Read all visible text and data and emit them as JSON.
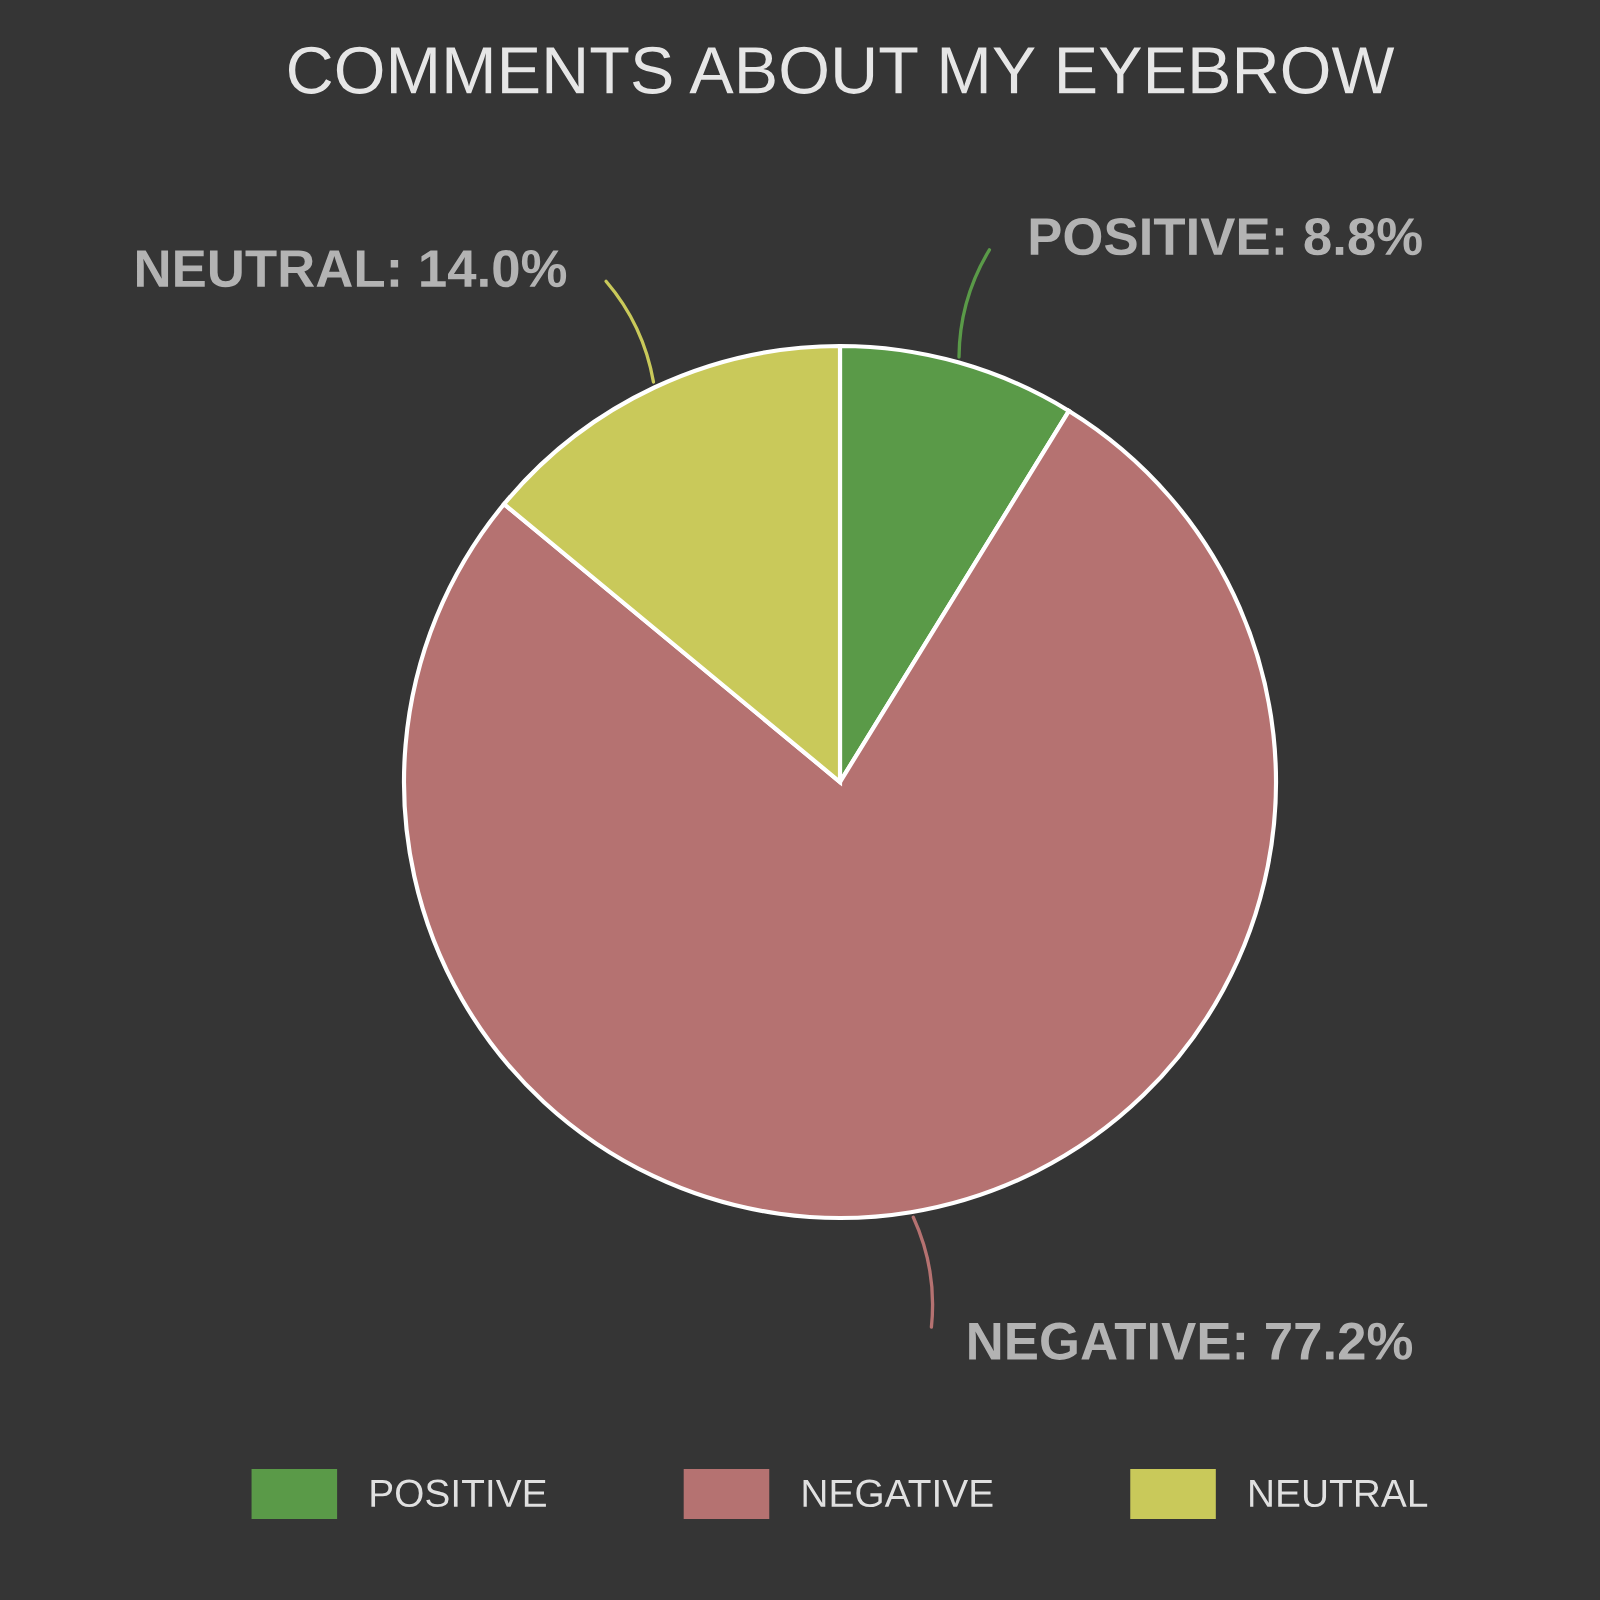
{
  "chart_data": {
    "type": "pie",
    "title": "COMMENTS ABOUT MY EYEBROW",
    "categories": [
      "POSITIVE",
      "NEGATIVE",
      "NEUTRAL"
    ],
    "values": [
      8.8,
      77.2,
      14.0
    ],
    "colors": [
      "#5a9a48",
      "#b57271",
      "#c9c95a"
    ],
    "value_labels": [
      "POSITIVE: 8.8%",
      "NEGATIVE: 77.2%",
      "NEUTRAL: 14.0%"
    ],
    "legend": "bottom"
  }
}
